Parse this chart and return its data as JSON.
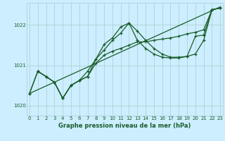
{
  "bg_color": "#cceeff",
  "grid_color_v": "#aacccc",
  "grid_color_h": "#aacccc",
  "line_color": "#1a5c2a",
  "title": "Graphe pression niveau de la mer (hPa)",
  "ylim": [
    1019.75,
    1022.55
  ],
  "xlim": [
    -0.3,
    23.3
  ],
  "yticks": [
    1020,
    1021,
    1022
  ],
  "xticks": [
    0,
    1,
    2,
    3,
    4,
    5,
    6,
    7,
    8,
    9,
    10,
    11,
    12,
    13,
    14,
    15,
    16,
    17,
    18,
    19,
    20,
    21,
    22,
    23
  ],
  "series": [
    {
      "x": [
        0,
        23
      ],
      "y": [
        1020.3,
        1022.45
      ],
      "marker": null,
      "lw": 0.9
    },
    {
      "x": [
        0,
        1,
        2,
        3,
        4,
        5,
        6,
        7,
        8,
        9,
        10,
        11,
        12,
        13,
        14,
        15,
        16,
        17,
        18,
        19,
        20,
        21,
        22,
        23
      ],
      "y": [
        1020.3,
        1020.85,
        1020.72,
        1020.58,
        1020.18,
        1020.5,
        1020.62,
        1020.72,
        1021.15,
        1021.52,
        1021.68,
        1021.95,
        1022.05,
        1021.62,
        1021.42,
        1021.28,
        1021.2,
        1021.18,
        1021.18,
        1021.22,
        1021.28,
        1021.62,
        1022.38,
        1022.42
      ],
      "marker": "+",
      "lw": 0.9
    },
    {
      "x": [
        1,
        2,
        3,
        4,
        5,
        6,
        7,
        8,
        9,
        10,
        11,
        12,
        13,
        14,
        15,
        16,
        17,
        18,
        19,
        20,
        21,
        22,
        23
      ],
      "y": [
        1020.85,
        1020.72,
        1020.58,
        1020.18,
        1020.5,
        1020.62,
        1020.85,
        1021.15,
        1021.38,
        1021.62,
        1021.8,
        1022.05,
        1021.85,
        1021.62,
        1021.42,
        1021.28,
        1021.2,
        1021.2,
        1021.22,
        1021.72,
        1021.75,
        1022.38,
        1022.42
      ],
      "marker": "+",
      "lw": 0.9
    },
    {
      "x": [
        0,
        1,
        2,
        3,
        4,
        5,
        6,
        7,
        8,
        9,
        10,
        11,
        12,
        13,
        14,
        15,
        16,
        17,
        18,
        19,
        20,
        21,
        22,
        23
      ],
      "y": [
        1020.3,
        1020.85,
        1020.72,
        1020.58,
        1020.18,
        1020.5,
        1020.62,
        1020.72,
        1021.05,
        1021.25,
        1021.35,
        1021.42,
        1021.5,
        1021.58,
        1021.58,
        1021.62,
        1021.65,
        1021.68,
        1021.72,
        1021.78,
        1021.82,
        1021.88,
        1022.38,
        1022.42
      ],
      "marker": "+",
      "lw": 0.9
    }
  ]
}
